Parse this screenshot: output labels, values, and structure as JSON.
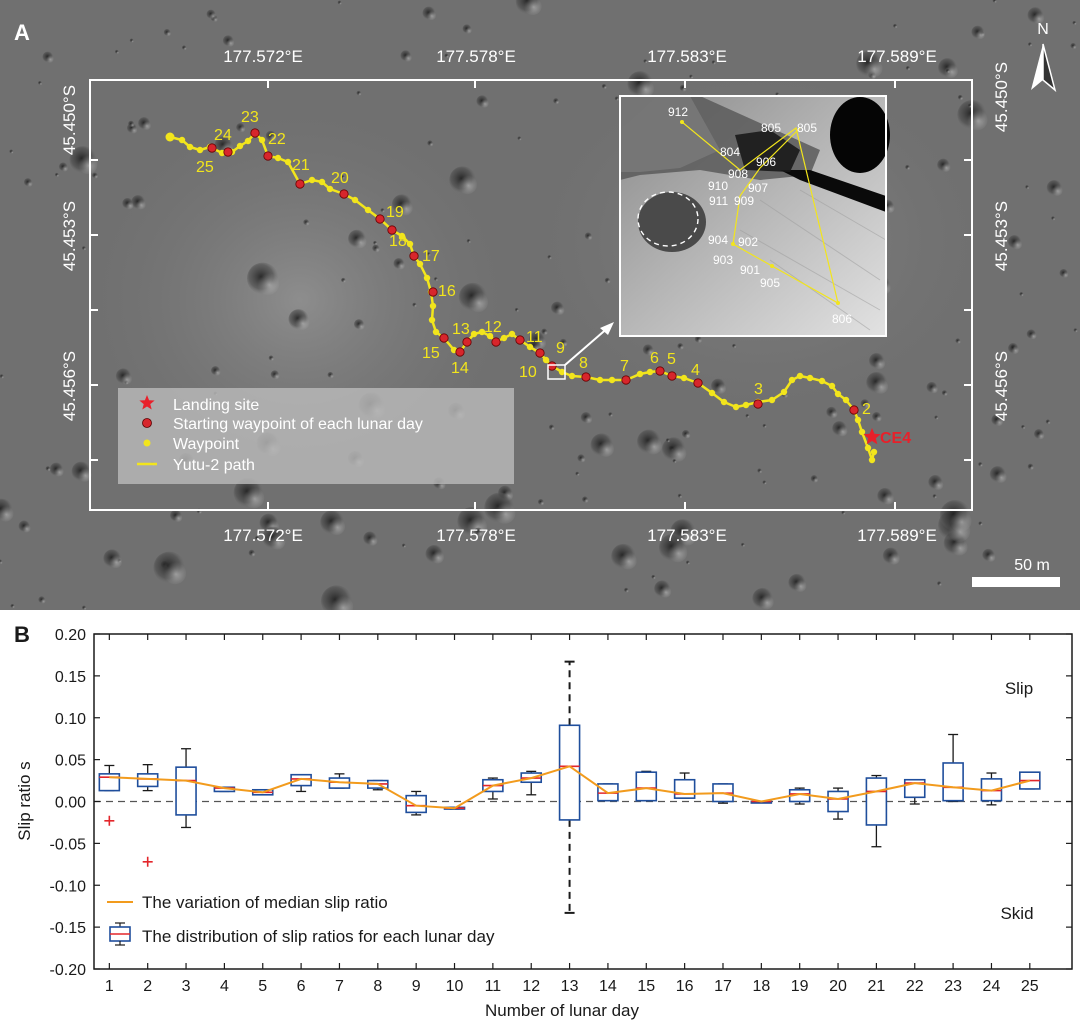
{
  "panel_a": {
    "label": "A",
    "north": "N",
    "lon_labels": [
      "177.572°E",
      "177.578°E",
      "177.583°E",
      "177.589°E"
    ],
    "lat_labels": [
      "45.450°S",
      "45.453°S",
      "45.456°S"
    ],
    "scale_label": "50 m",
    "landing_label": "CE4",
    "legend": {
      "landing": "Landing site",
      "start": "Starting waypoint of each lunar day",
      "waypoint": "Waypoint",
      "path": "Yutu-2 path"
    },
    "day_labels": [
      "2",
      "3",
      "4",
      "5",
      "6",
      "7",
      "8",
      "9",
      "10",
      "11",
      "12",
      "13",
      "14",
      "15",
      "16",
      "17",
      "18",
      "19",
      "20",
      "21",
      "22",
      "23",
      "24",
      "25"
    ],
    "inset_labels": [
      "912",
      "805",
      "805",
      "804",
      "906",
      "908",
      "910",
      "907",
      "911",
      "909",
      "904",
      "902",
      "903",
      "901",
      "905",
      "806"
    ],
    "colors": {
      "path": "#f2e51c",
      "start": "#d7262c",
      "landing": "#e8202a",
      "frame": "#ffffff"
    }
  },
  "panel_b": {
    "label": "B"
  },
  "chart_data": {
    "type": "box",
    "xlabel": "Number of lunar day",
    "ylabel": "Slip ratio s",
    "categories": [
      "1",
      "2",
      "3",
      "4",
      "5",
      "6",
      "7",
      "8",
      "9",
      "10",
      "11",
      "12",
      "13",
      "14",
      "15",
      "16",
      "17",
      "18",
      "19",
      "20",
      "21",
      "22",
      "23",
      "24",
      "25"
    ],
    "ylim": [
      -0.2,
      0.2
    ],
    "yticks": [
      "0.20",
      "0.15",
      "0.10",
      "0.05",
      "0.00",
      "-0.05",
      "-0.10",
      "-0.15",
      "-0.20"
    ],
    "annotations": {
      "top": "Slip",
      "bottom": "Skid"
    },
    "legend": {
      "line": "The variation of median slip ratio",
      "box": "The distribution of slip ratios for each lunar day"
    },
    "colors": {
      "box": "#1f4e9c",
      "median_line": "#f29b1d",
      "median_mark": "#e3262b",
      "outlier": "#e3262b"
    },
    "boxes": [
      {
        "day": 1,
        "q1": 0.013,
        "q3": 0.033,
        "median": 0.029,
        "wlo": 0.013,
        "whi": 0.043,
        "outliers": [
          -0.023
        ]
      },
      {
        "day": 2,
        "q1": 0.018,
        "q3": 0.033,
        "median": 0.027,
        "wlo": 0.013,
        "whi": 0.044,
        "outliers": [
          -0.072
        ]
      },
      {
        "day": 3,
        "q1": -0.016,
        "q3": 0.041,
        "median": 0.025,
        "wlo": -0.031,
        "whi": 0.063,
        "outliers": []
      },
      {
        "day": 4,
        "q1": 0.012,
        "q3": 0.017,
        "median": 0.016,
        "wlo": 0.012,
        "whi": 0.017,
        "outliers": []
      },
      {
        "day": 5,
        "q1": 0.008,
        "q3": 0.014,
        "median": 0.011,
        "wlo": 0.008,
        "whi": 0.014,
        "outliers": []
      },
      {
        "day": 6,
        "q1": 0.019,
        "q3": 0.032,
        "median": 0.027,
        "wlo": 0.012,
        "whi": 0.032,
        "outliers": []
      },
      {
        "day": 7,
        "q1": 0.016,
        "q3": 0.028,
        "median": 0.023,
        "wlo": 0.016,
        "whi": 0.033,
        "outliers": []
      },
      {
        "day": 8,
        "q1": 0.016,
        "q3": 0.025,
        "median": 0.021,
        "wlo": 0.014,
        "whi": 0.025,
        "outliers": []
      },
      {
        "day": 9,
        "q1": -0.013,
        "q3": 0.007,
        "median": -0.005,
        "wlo": -0.016,
        "whi": 0.012,
        "outliers": []
      },
      {
        "day": 10,
        "q1": -0.009,
        "q3": -0.007,
        "median": -0.008,
        "wlo": -0.009,
        "whi": -0.007,
        "outliers": []
      },
      {
        "day": 11,
        "q1": 0.012,
        "q3": 0.026,
        "median": 0.019,
        "wlo": 0.003,
        "whi": 0.028,
        "outliers": []
      },
      {
        "day": 12,
        "q1": 0.023,
        "q3": 0.034,
        "median": 0.028,
        "wlo": 0.008,
        "whi": 0.036,
        "outliers": []
      },
      {
        "day": 13,
        "q1": -0.022,
        "q3": 0.091,
        "median": 0.042,
        "wlo": -0.133,
        "whi": 0.167,
        "outliers": []
      },
      {
        "day": 14,
        "q1": 0.001,
        "q3": 0.021,
        "median": 0.01,
        "wlo": 0.001,
        "whi": 0.021,
        "outliers": []
      },
      {
        "day": 15,
        "q1": 0.001,
        "q3": 0.035,
        "median": 0.016,
        "wlo": 0.001,
        "whi": 0.036,
        "outliers": []
      },
      {
        "day": 16,
        "q1": 0.004,
        "q3": 0.026,
        "median": 0.009,
        "wlo": 0.004,
        "whi": 0.034,
        "outliers": []
      },
      {
        "day": 17,
        "q1": 0.0,
        "q3": 0.021,
        "median": 0.01,
        "wlo": -0.002,
        "whi": 0.021,
        "outliers": []
      },
      {
        "day": 18,
        "q1": -0.001,
        "q3": 0.0,
        "median": 0.0,
        "wlo": -0.001,
        "whi": 0.0,
        "outliers": []
      },
      {
        "day": 19,
        "q1": 0.0,
        "q3": 0.014,
        "median": 0.009,
        "wlo": -0.003,
        "whi": 0.016,
        "outliers": []
      },
      {
        "day": 20,
        "q1": -0.012,
        "q3": 0.012,
        "median": 0.003,
        "wlo": -0.021,
        "whi": 0.016,
        "outliers": []
      },
      {
        "day": 21,
        "q1": -0.028,
        "q3": 0.028,
        "median": 0.012,
        "wlo": -0.054,
        "whi": 0.031,
        "outliers": []
      },
      {
        "day": 22,
        "q1": 0.005,
        "q3": 0.026,
        "median": 0.022,
        "wlo": -0.003,
        "whi": 0.026,
        "outliers": []
      },
      {
        "day": 23,
        "q1": 0.001,
        "q3": 0.046,
        "median": 0.017,
        "wlo": 0.0,
        "whi": 0.08,
        "outliers": []
      },
      {
        "day": 24,
        "q1": 0.001,
        "q3": 0.027,
        "median": 0.013,
        "wlo": -0.004,
        "whi": 0.034,
        "outliers": []
      },
      {
        "day": 25,
        "q1": 0.015,
        "q3": 0.035,
        "median": 0.025,
        "wlo": 0.015,
        "whi": 0.035,
        "outliers": []
      }
    ]
  }
}
